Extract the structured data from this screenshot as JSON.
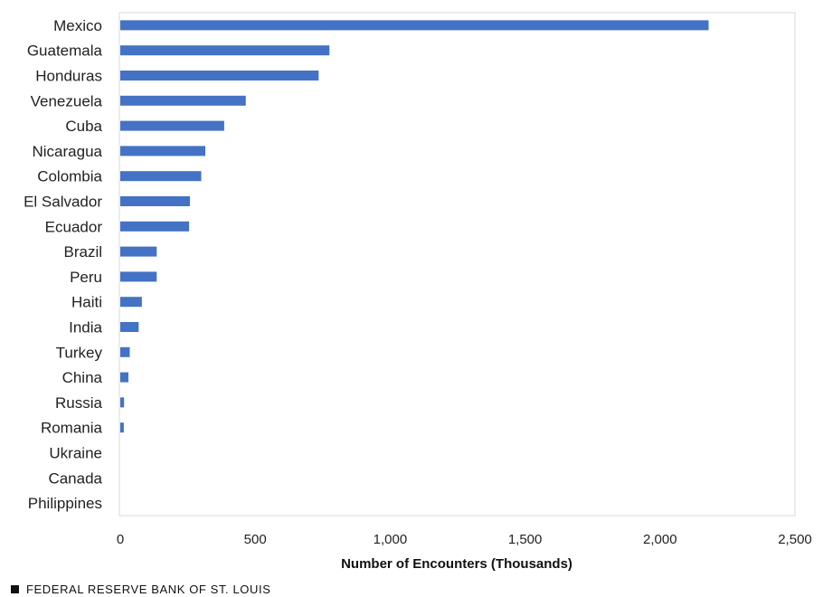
{
  "chart_data": {
    "type": "bar",
    "orientation": "horizontal",
    "title": "",
    "xlabel": "Number of Encounters (Thousands)",
    "ylabel": "",
    "categories": [
      "Mexico",
      "Guatemala",
      "Honduras",
      "Venezuela",
      "Cuba",
      "Nicaragua",
      "Colombia",
      "El Salvador",
      "Ecuador",
      "Brazil",
      "Peru",
      "Haiti",
      "India",
      "Turkey",
      "China",
      "Russia",
      "Romania",
      "Ukraine",
      "Canada",
      "Philippines"
    ],
    "values": [
      2180,
      775,
      735,
      465,
      385,
      315,
      300,
      258,
      255,
      135,
      135,
      80,
      68,
      35,
      30,
      14,
      13,
      0,
      0,
      0
    ],
    "xlim": [
      0,
      2500
    ],
    "xticks": [
      0,
      500,
      1000,
      1500,
      2000,
      2500
    ],
    "xtick_labels": [
      "0",
      "500",
      "1,000",
      "1,500",
      "2,000",
      "2,500"
    ],
    "bar_color": "#4472C4",
    "grid": false,
    "legend": "none"
  },
  "footer": {
    "source_label": "FEDERAL RESERVE BANK OF ST. LOUIS"
  }
}
